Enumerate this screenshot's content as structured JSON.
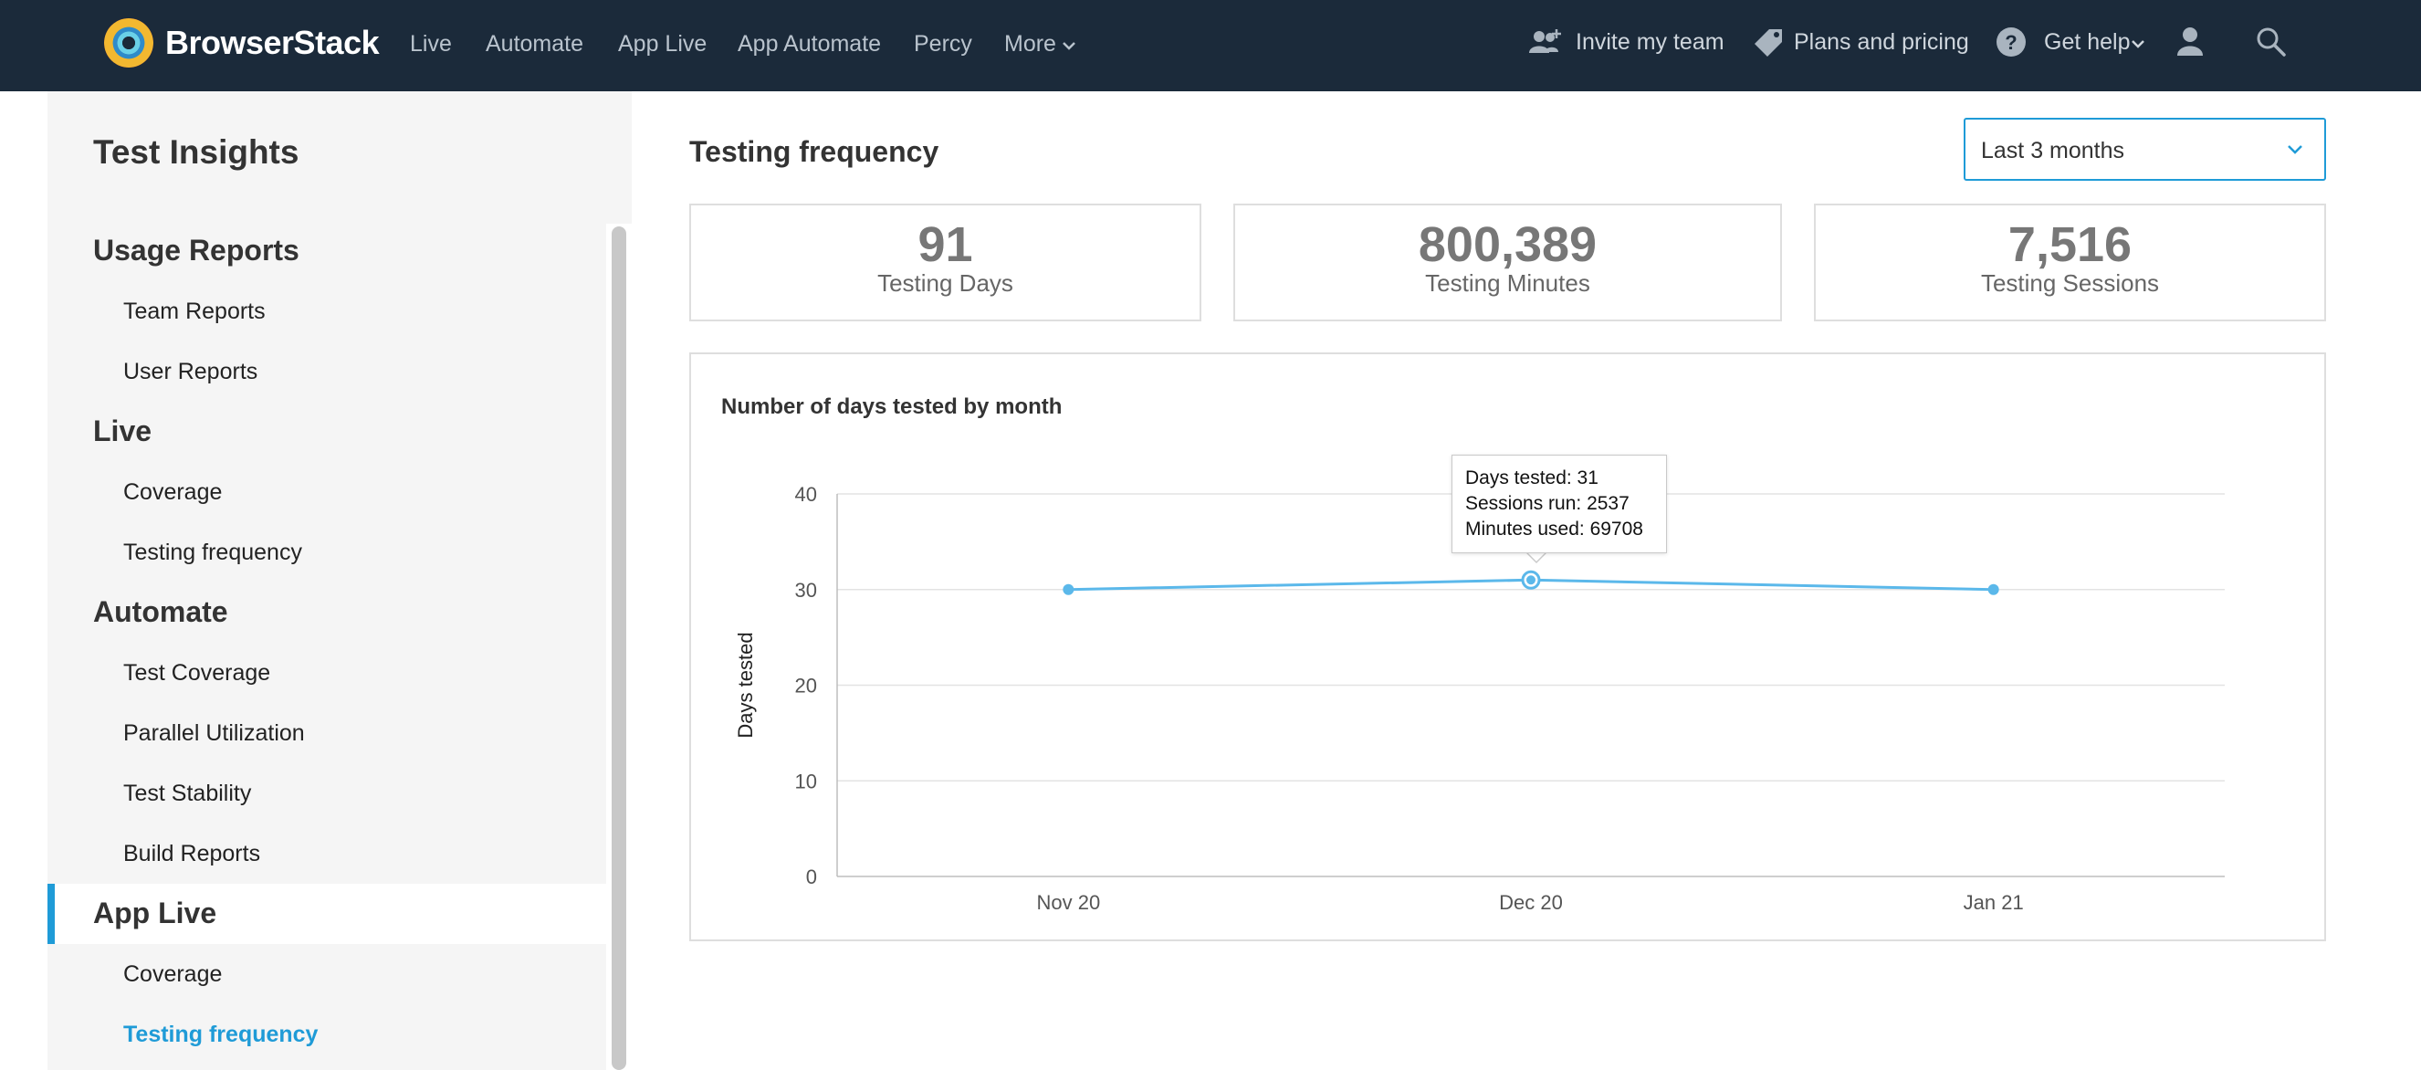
{
  "topnav": {
    "brand": "BrowserStack",
    "links": [
      "Live",
      "Automate",
      "App Live",
      "App Automate",
      "Percy",
      "More"
    ],
    "invite": "Invite my team",
    "plans": "Plans and pricing",
    "help": "Get help",
    "icons": {
      "logo": "browserstack-logo",
      "invite": "invite-team-icon",
      "plans": "price-tag-icon",
      "help": "question-circle-icon",
      "user": "user-icon",
      "search": "search-icon"
    }
  },
  "sidebar": {
    "title": "Test Insights",
    "sections": [
      {
        "label": "Usage Reports",
        "items": [
          "Team Reports",
          "User Reports"
        ]
      },
      {
        "label": "Live",
        "items": [
          "Coverage",
          "Testing frequency"
        ]
      },
      {
        "label": "Automate",
        "items": [
          "Test Coverage",
          "Parallel Utilization",
          "Test Stability",
          "Build Reports"
        ]
      },
      {
        "label": "App Live",
        "items": [
          "Coverage",
          "Testing frequency"
        ]
      }
    ],
    "active_item": "App Live / Testing frequency"
  },
  "main": {
    "title": "Testing frequency",
    "range_select": {
      "value": "Last 3 months"
    },
    "stats": [
      {
        "value": "91",
        "label": "Testing Days"
      },
      {
        "value": "800,389",
        "label": "Testing Minutes"
      },
      {
        "value": "7,516",
        "label": "Testing Sessions"
      }
    ],
    "tooltip": {
      "days": "Days tested: 31",
      "sessions": "Sessions run: 2537",
      "minutes": "Minutes used: 69708"
    }
  },
  "colors": {
    "nav_bg": "#1b2a3a",
    "accent": "#1f9bd7",
    "line": "#5bb8ea",
    "sidebar_bg": "#f5f5f5"
  },
  "chart_data": {
    "type": "line",
    "title": "Number of days tested by month",
    "ylabel": "Days tested",
    "xlabel": "",
    "categories": [
      "Nov 20",
      "Dec 20",
      "Jan 21"
    ],
    "series": [
      {
        "values": [
          30,
          31,
          30
        ]
      }
    ],
    "ylim": [
      0,
      40
    ],
    "yticks": [
      0,
      10,
      20,
      30,
      40
    ],
    "grid": true,
    "legend": "none",
    "highlighted_point": 1
  }
}
